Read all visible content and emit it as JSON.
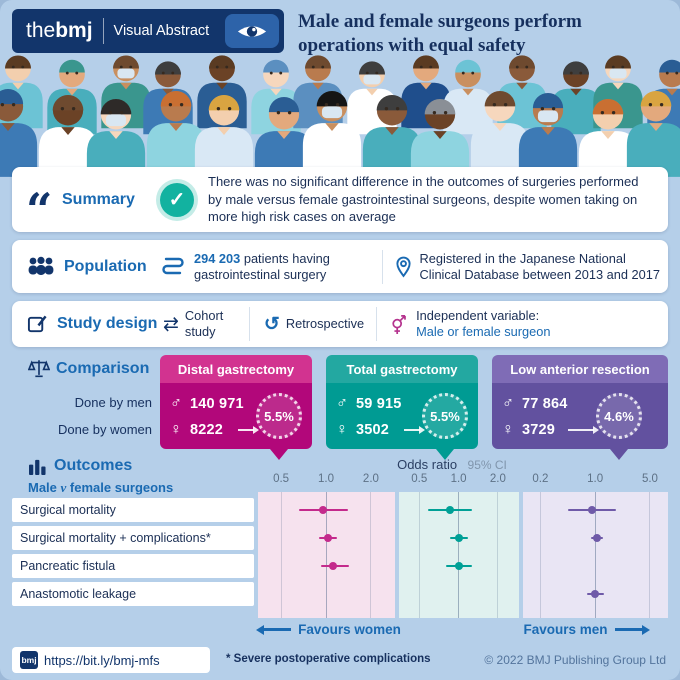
{
  "header": {
    "brand_the": "the",
    "brand_bmj": "bmj",
    "brand_sub": "Visual Abstract",
    "title_line1": "Male and female surgeons perform",
    "title_line2": "operations with equal safety"
  },
  "icons": {
    "quote": "“",
    "check": "✓",
    "male": "♂",
    "female": "♀",
    "swap": "⇄",
    "retro": "↺"
  },
  "summary": {
    "label": "Summary",
    "text": "There was no significant difference in the outcomes of surgeries performed by male versus female gastrointestinal surgeons, despite women taking on more high risk cases on average"
  },
  "population": {
    "label": "Population",
    "count": "294 203",
    "count_caption": "patients having gastrointestinal surgery",
    "registry": "Registered in the Japanese National Clinical Database between 2013 and 2017"
  },
  "study_design": {
    "label": "Study design",
    "design1": "Cohort study",
    "design2": "Retrospective",
    "design3_label": "Independent variable:",
    "design3_value": "Male or female surgeon"
  },
  "comparison": {
    "label": "Comparison",
    "row_men": "Done by men",
    "row_women": "Done by women",
    "cards": [
      {
        "title": "Distal gastrectomy",
        "men": "140 971",
        "women": "8222",
        "badge": "5.5%",
        "header_color": "#d23390",
        "body_color": "#b2077a"
      },
      {
        "title": "Total gastrectomy",
        "men": "59 915",
        "women": "3502",
        "badge": "5.5%",
        "header_color": "#23a8a1",
        "body_color": "#009b93"
      },
      {
        "title": "Low anterior resection",
        "men": "77 864",
        "women": "3729",
        "badge": "4.6%",
        "header_color": "#7f6cb6",
        "body_color": "#62519f"
      }
    ]
  },
  "outcomes": {
    "label": "Outcomes",
    "sublabel_pre": "Male ",
    "sublabel_v": "v",
    "sublabel_post": " female surgeons",
    "axis_title": "Odds ratio",
    "axis_ci": "95% CI",
    "favours_left": "Favours women",
    "favours_right": "Favours men"
  },
  "footer": {
    "logo": "bmj",
    "url": "https://bit.ly/bmj-mfs",
    "note": "* Severe postoperative complications",
    "copyright": "© 2022 BMJ Publishing Group Ltd"
  },
  "chart_data": {
    "type": "scatter",
    "subtype": "forest-plot",
    "title": "Odds ratio (95% CI), male v female surgeons",
    "scale": "log",
    "legend_position": "none",
    "grid": true,
    "row_labels": [
      "Surgical mortality",
      "Surgical mortality + complications*",
      "Pancreatic fistula",
      "Anastomotic leakage"
    ],
    "panels": [
      {
        "name": "Distal gastrectomy",
        "ticks": [
          0.5,
          1.0,
          2.0
        ],
        "xlim": [
          0.35,
          2.9
        ],
        "color": "#c42a8c",
        "tint": "#f6e2ee",
        "points": [
          {
            "or": 0.95,
            "lo": 0.66,
            "hi": 1.4
          },
          {
            "or": 1.03,
            "lo": 0.9,
            "hi": 1.18
          },
          {
            "or": 1.12,
            "lo": 0.92,
            "hi": 1.42
          },
          null
        ]
      },
      {
        "name": "Total gastrectomy",
        "ticks": [
          0.5,
          1.0,
          2.0
        ],
        "xlim": [
          0.35,
          2.9
        ],
        "color": "#00a096",
        "tint": "#e0f1ef",
        "points": [
          {
            "or": 0.86,
            "lo": 0.58,
            "hi": 1.27
          },
          {
            "or": 1.0,
            "lo": 0.86,
            "hi": 1.18
          },
          {
            "or": 1.0,
            "lo": 0.8,
            "hi": 1.26
          },
          null
        ]
      },
      {
        "name": "Low anterior resection",
        "ticks": [
          0.2,
          1.0,
          5.0
        ],
        "xlim": [
          0.12,
          8.5
        ],
        "color": "#6f5aa8",
        "tint": "#e9e5f4",
        "points": [
          {
            "or": 0.9,
            "lo": 0.45,
            "hi": 1.85
          },
          {
            "or": 1.05,
            "lo": 0.88,
            "hi": 1.25
          },
          null,
          {
            "or": 1.0,
            "lo": 0.78,
            "hi": 1.3
          }
        ]
      }
    ]
  }
}
